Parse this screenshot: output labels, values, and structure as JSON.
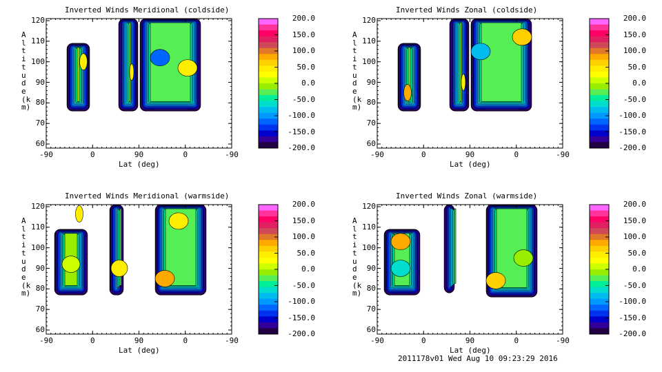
{
  "footer": "2011178v01 Wed Aug 10 09:23:29 2016",
  "colors": [
    "#ff66ff",
    "#ff3399",
    "#ff0066",
    "#e02060",
    "#d04858",
    "#e07828",
    "#ffaa00",
    "#ffd000",
    "#ffee00",
    "#ffff00",
    "#ccff00",
    "#99ee00",
    "#55ee55",
    "#00ee99",
    "#00ddcc",
    "#00bbee",
    "#0099ff",
    "#0066ff",
    "#0033ee",
    "#0000cc",
    "#330099",
    "#220044"
  ],
  "chart_data": [
    {
      "type": "heatmap",
      "title": "Inverted Winds Meridional (coldside)",
      "xlabel": "Lat (deg)",
      "ylabel": "Altitude (km)",
      "xticks": [
        "-90",
        "0",
        "90",
        "0",
        "-90"
      ],
      "yticks": [
        "60",
        "70",
        "80",
        "90",
        "100",
        "110",
        "120"
      ],
      "ylim": [
        58,
        121
      ],
      "colorbar": [
        "200.0",
        "150.0",
        "100.0",
        "50.0",
        "0.0",
        "-50.0",
        "-100.0",
        "-150.0",
        "-200.0"
      ],
      "crange": [
        -200,
        200
      ]
    },
    {
      "type": "heatmap",
      "title": "Inverted Winds Zonal (coldside)",
      "xlabel": "Lat (deg)",
      "ylabel": "Altitude (km)",
      "xticks": [
        "-90",
        "0",
        "90",
        "0",
        "-90"
      ],
      "yticks": [
        "60",
        "70",
        "80",
        "90",
        "100",
        "110",
        "120"
      ],
      "ylim": [
        58,
        121
      ],
      "colorbar": [
        "200.0",
        "150.0",
        "100.0",
        "50.0",
        "0.0",
        "-50.0",
        "-100.0",
        "-150.0",
        "-200.0"
      ],
      "crange": [
        -200,
        200
      ]
    },
    {
      "type": "heatmap",
      "title": "Inverted Winds Meridional (warmside)",
      "xlabel": "Lat (deg)",
      "ylabel": "Altitude (km)",
      "xticks": [
        "-90",
        "0",
        "90",
        "0",
        "-90"
      ],
      "yticks": [
        "60",
        "70",
        "80",
        "90",
        "100",
        "110",
        "120"
      ],
      "ylim": [
        58,
        121
      ],
      "colorbar": [
        "200.0",
        "150.0",
        "100.0",
        "50.0",
        "0.0",
        "-50.0",
        "-100.0",
        "-150.0",
        "-200.0"
      ],
      "crange": [
        -200,
        200
      ]
    },
    {
      "type": "heatmap",
      "title": "Inverted Winds Zonal (warmside)",
      "xlabel": "Lat (deg)",
      "ylabel": "Altitude (km)",
      "xticks": [
        "-90",
        "0",
        "90",
        "0",
        "-90"
      ],
      "yticks": [
        "60",
        "70",
        "80",
        "90",
        "100",
        "110",
        "120"
      ],
      "ylim": [
        58,
        121
      ],
      "colorbar": [
        "200.0",
        "150.0",
        "100.0",
        "50.0",
        "0.0",
        "-50.0",
        "-100.0",
        "-150.0",
        "-200.0"
      ],
      "crange": [
        -200,
        200
      ]
    }
  ]
}
